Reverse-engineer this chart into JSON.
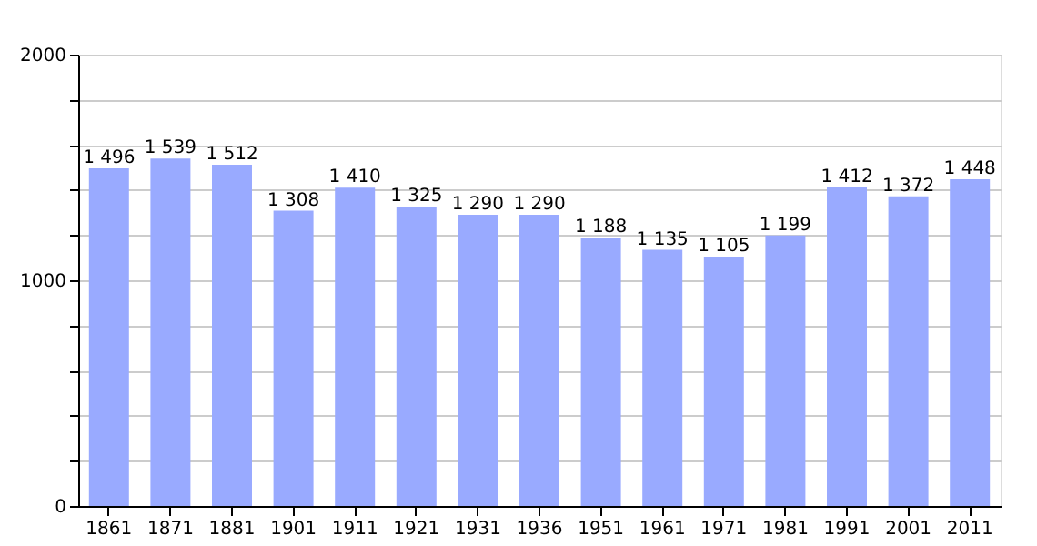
{
  "chart_data": {
    "type": "bar",
    "categories": [
      "1861",
      "1871",
      "1881",
      "1901",
      "1911",
      "1921",
      "1931",
      "1936",
      "1951",
      "1961",
      "1971",
      "1981",
      "1991",
      "2001",
      "2011"
    ],
    "values": [
      1496,
      1539,
      1512,
      1308,
      1410,
      1325,
      1290,
      1290,
      1188,
      1135,
      1105,
      1199,
      1412,
      1372,
      1448
    ],
    "value_labels": [
      "1 496",
      "1 539",
      "1 512",
      "1 308",
      "1 410",
      "1 325",
      "1 290",
      "1 290",
      "1 188",
      "1 135",
      "1 105",
      "1 199",
      "1 412",
      "1 372",
      "1 448"
    ],
    "color": "#99aaff",
    "ylim": [
      0,
      2000
    ],
    "yticks": [
      0,
      {
        "value": 200,
        "label": null
      },
      {
        "value": 400,
        "label": null
      },
      {
        "value": 600,
        "label": null
      },
      {
        "value": 800,
        "label": null
      },
      1000,
      {
        "value": 1200,
        "label": null
      },
      {
        "value": 1400,
        "label": null
      },
      {
        "value": 1600,
        "label": null
      },
      {
        "value": 1800,
        "label": null
      },
      2000
    ],
    "grid": "y",
    "legend": false
  }
}
